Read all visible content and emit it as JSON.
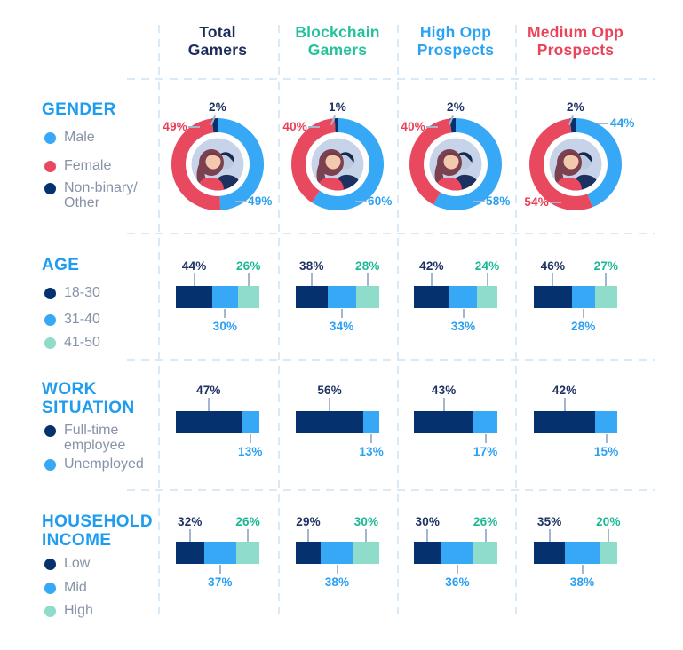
{
  "palette": {
    "grid": "#d8e9f8",
    "tick_line": "#a2b6cd",
    "heading_blue": "#1e9cf0",
    "legend_text": "#8793a7",
    "navy_fill": "#05316e",
    "blue_fill": "#36a8f5",
    "mint_fill": "#8edcc9",
    "red_fill": "#e9495e",
    "navy_text": "#1e3263",
    "blue_text": "#2aa0f2",
    "mint_text": "#1bb894",
    "red_text": "#e83f55",
    "avatar_bg": "#c7d3e9",
    "avatar_skin": "#f3c9ae",
    "avatar_hair": "#7c4150",
    "avatar_suit": "#1d3160",
    "avatar_silhouette": "#bcc9df"
  },
  "columns": [
    {
      "label": "Total\nGamers",
      "color": "#1d2d5b"
    },
    {
      "label": "Blockchain\nGamers",
      "color": "#25c19b"
    },
    {
      "label": "High Opp\nProspects",
      "color": "#2aa3f5"
    },
    {
      "label": "Medium Opp\nProspects",
      "color": "#ea4458"
    }
  ],
  "chart_data": [
    {
      "type": "pie",
      "row_title": "GENDER",
      "categories": [
        "Male",
        "Female",
        "Non-binary/Other"
      ],
      "category_colors": [
        "#36a8f5",
        "#e9495e",
        "#05316e"
      ],
      "category_text_colors": [
        "#2aa0f2",
        "#e83f55",
        "#1e3263"
      ],
      "legend": [
        {
          "label": "Male",
          "color": "#36a8f5"
        },
        {
          "label": "Female",
          "color": "#e9495e"
        },
        {
          "label": "Non-binary/\nOther",
          "color": "#05316e"
        }
      ],
      "series": [
        {
          "name": "Total Gamers",
          "values": [
            49,
            49,
            2
          ],
          "callouts": [
            {
              "category_index": 2,
              "text": "2%",
              "pos": "top"
            },
            {
              "category_index": 1,
              "text": "49%",
              "pos": "upper-left"
            },
            {
              "category_index": 0,
              "text": "49%",
              "pos": "lower-right"
            }
          ]
        },
        {
          "name": "Blockchain Gamers",
          "values": [
            60,
            40,
            1
          ],
          "callouts": [
            {
              "category_index": 2,
              "text": "1%",
              "pos": "top"
            },
            {
              "category_index": 1,
              "text": "40%",
              "pos": "upper-left"
            },
            {
              "category_index": 0,
              "text": "60%",
              "pos": "lower-right"
            }
          ]
        },
        {
          "name": "High Opp Prospects",
          "values": [
            58,
            40,
            2
          ],
          "callouts": [
            {
              "category_index": 2,
              "text": "2%",
              "pos": "top"
            },
            {
              "category_index": 1,
              "text": "40%",
              "pos": "upper-left"
            },
            {
              "category_index": 0,
              "text": "58%",
              "pos": "lower-right"
            }
          ]
        },
        {
          "name": "Medium Opp Prospects",
          "values": [
            44,
            54,
            2
          ],
          "callouts": [
            {
              "category_index": 2,
              "text": "2%",
              "pos": "top"
            },
            {
              "category_index": 0,
              "text": "44%",
              "pos": "upper-right"
            },
            {
              "category_index": 1,
              "text": "54%",
              "pos": "lower-left"
            }
          ]
        }
      ]
    },
    {
      "type": "bar",
      "row_title": "AGE",
      "categories": [
        "18-30",
        "31-40",
        "41-50"
      ],
      "category_colors": [
        "#05316e",
        "#36a8f5",
        "#8edcc9"
      ],
      "category_text_colors": [
        "#1e3263",
        "#2aa0f2",
        "#1bb894"
      ],
      "legend": [
        {
          "label": "18-30",
          "color": "#05316e"
        },
        {
          "label": "31-40",
          "color": "#36a8f5"
        },
        {
          "label": "41-50",
          "color": "#8edcc9"
        }
      ],
      "series": [
        {
          "name": "Total Gamers",
          "values": [
            44,
            30,
            26
          ],
          "labels": [
            "44%",
            "30%",
            "26%"
          ]
        },
        {
          "name": "Blockchain Gamers",
          "values": [
            38,
            34,
            28
          ],
          "labels": [
            "38%",
            "34%",
            "28%"
          ]
        },
        {
          "name": "High Opp Prospects",
          "values": [
            42,
            33,
            24
          ],
          "labels": [
            "42%",
            "33%",
            "24%"
          ]
        },
        {
          "name": "Medium Opp Prospects",
          "values": [
            46,
            28,
            27
          ],
          "labels": [
            "46%",
            "28%",
            "27%"
          ]
        }
      ]
    },
    {
      "type": "bar",
      "row_title": "WORK\nSITUATION",
      "categories": [
        "Full-time employee",
        "Unemployed"
      ],
      "category_colors": [
        "#05316e",
        "#36a8f5"
      ],
      "category_text_colors": [
        "#1e3263",
        "#2aa0f2"
      ],
      "legend": [
        {
          "label": "Full-time\nemployee",
          "color": "#05316e"
        },
        {
          "label": "Unemployed",
          "color": "#36a8f5"
        }
      ],
      "series": [
        {
          "name": "Total Gamers",
          "values": [
            47,
            13
          ],
          "labels": [
            "47%",
            "13%"
          ]
        },
        {
          "name": "Blockchain Gamers",
          "values": [
            56,
            13
          ],
          "labels": [
            "56%",
            "13%"
          ]
        },
        {
          "name": "High Opp Prospects",
          "values": [
            43,
            17
          ],
          "labels": [
            "43%",
            "17%"
          ]
        },
        {
          "name": "Medium Opp Prospects",
          "values": [
            42,
            15
          ],
          "labels": [
            "42%",
            "15%"
          ]
        }
      ]
    },
    {
      "type": "bar",
      "row_title": "HOUSEHOLD\nINCOME",
      "categories": [
        "Low",
        "Mid",
        "High"
      ],
      "category_colors": [
        "#05316e",
        "#36a8f5",
        "#8edcc9"
      ],
      "category_text_colors": [
        "#1e3263",
        "#2aa0f2",
        "#1bb894"
      ],
      "legend": [
        {
          "label": "Low",
          "color": "#05316e"
        },
        {
          "label": "Mid",
          "color": "#36a8f5"
        },
        {
          "label": "High",
          "color": "#8edcc9"
        }
      ],
      "series": [
        {
          "name": "Total Gamers",
          "values": [
            32,
            37,
            26
          ],
          "labels": [
            "32%",
            "37%",
            "26%"
          ]
        },
        {
          "name": "Blockchain Gamers",
          "values": [
            29,
            38,
            30
          ],
          "labels": [
            "29%",
            "38%",
            "30%"
          ]
        },
        {
          "name": "High Opp Prospects",
          "values": [
            30,
            36,
            26
          ],
          "labels": [
            "30%",
            "36%",
            "26%"
          ]
        },
        {
          "name": "Medium Opp Prospects",
          "values": [
            35,
            38,
            20
          ],
          "labels": [
            "35%",
            "38%",
            "20%"
          ]
        }
      ]
    }
  ]
}
